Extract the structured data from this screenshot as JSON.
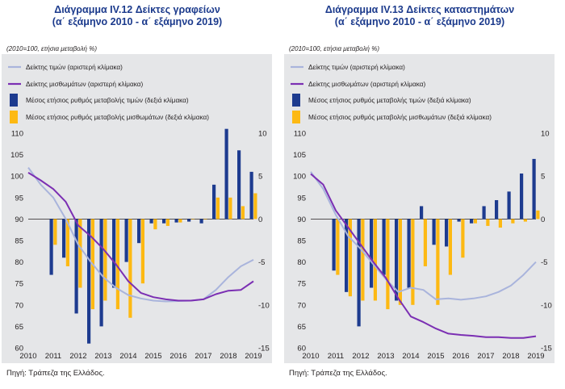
{
  "colors": {
    "price_line": "#a9b4dc",
    "wage_line": "#7b2fb3",
    "price_bar": "#1d3b8f",
    "wage_bar": "#fdb913",
    "title": "#1b3a8c",
    "panel_bg": "#e5e6e8"
  },
  "chart_data": [
    {
      "type": "bar+line",
      "title_line1": "Διάγραμμα IV.12 Δείκτες γραφείων",
      "title_line2": "(α΄ εξάμηνο 2010 - α΄ εξάμηνο 2019)",
      "note": "(2010=100, ετήσια μεταβολή %)",
      "source": "Πηγή: Τράπεζα της Ελλάδος.",
      "legend": [
        {
          "key": "price_line",
          "label": "Δείκτης τιμών (αριστερή κλίμακα)"
        },
        {
          "key": "wage_line",
          "label": "Δείκτης μισθωμάτων (αριστερή κλίμακα)"
        },
        {
          "key": "price_bar",
          "label": "Μέσος ετήσιος ρυθμός μεταβολής τιμών (δεξιά κλίμακα)"
        },
        {
          "key": "wage_bar",
          "label": "Μέσος ετήσιος ρυθμός μεταβολής μισθωμάτων (δεξιά κλίμακα)"
        }
      ],
      "x_labels": [
        "2010",
        "2011",
        "2012",
        "2013",
        "2014",
        "2015",
        "2016",
        "2017",
        "2018",
        "2019"
      ],
      "y_left": {
        "min": 60,
        "max": 110,
        "ticks": [
          60,
          65,
          70,
          75,
          80,
          85,
          90,
          95,
          100,
          105,
          110
        ]
      },
      "y_right": {
        "min": -15,
        "max": 10,
        "ticks": [
          -15,
          -10,
          -5,
          0,
          5,
          10
        ]
      },
      "periods": [
        2011,
        2011.5,
        2012,
        2012.5,
        2013,
        2013.5,
        2014,
        2014.5,
        2015,
        2015.5,
        2016,
        2016.5,
        2017,
        2017.5,
        2018,
        2018.5,
        2019
      ],
      "price_change": [
        -6.5,
        -4.5,
        -11,
        -14.5,
        -12.5,
        -8,
        -5,
        -2.8,
        -0.5,
        -0.5,
        -0.4,
        -0.3,
        -0.5,
        4,
        10.5,
        8,
        5.5
      ],
      "wage_change": [
        -3,
        -5.5,
        -8,
        -10.5,
        -9.5,
        -10.5,
        -11.5,
        -7.5,
        -1.2,
        -0.8,
        -0.4,
        0,
        0,
        2.5,
        2.5,
        1.5,
        3
      ],
      "price_index": {
        "x": [
          2010,
          2010.5,
          2011,
          2011.5,
          2012,
          2012.5,
          2013,
          2013.5,
          2014,
          2014.5,
          2015,
          2015.5,
          2016,
          2016.5,
          2017,
          2017.5,
          2018,
          2018.5,
          2019
        ],
        "y": [
          102,
          98,
          95,
          90,
          84,
          80,
          76.5,
          74,
          72.3,
          71.5,
          71,
          70.8,
          70.9,
          71,
          71.3,
          73.5,
          76.5,
          79,
          80.5
        ]
      },
      "wage_index": {
        "x": [
          2010,
          2010.5,
          2011,
          2011.5,
          2012,
          2012.5,
          2013,
          2013.5,
          2014,
          2014.5,
          2015,
          2015.5,
          2016,
          2016.5,
          2017,
          2017.5,
          2018,
          2018.5,
          2019
        ],
        "y": [
          100.8,
          99,
          97,
          94,
          88.5,
          86,
          83,
          79.5,
          75.5,
          72.8,
          71.8,
          71.3,
          71,
          71,
          71.3,
          72.5,
          73.3,
          73.5,
          75.5
        ]
      }
    },
    {
      "type": "bar+line",
      "title_line1": "Διάγραμμα IV.13 Δείκτες καταστημάτων",
      "title_line2": "(α΄ εξάμηνο 2010 - α΄ εξάμηνο 2019)",
      "note": "(2010=100, ετήσια μεταβολή %)",
      "source": "Πηγή: Τράπεζα της Ελλάδος.",
      "legend": [
        {
          "key": "price_line",
          "label": "Δείκτης τιμών (αριστερή κλίμακα)"
        },
        {
          "key": "wage_line",
          "label": "Δείκτης μισθωμάτων (αριστερή κλίμακα)"
        },
        {
          "key": "price_bar",
          "label": "Μέσος ετήσιος ρυθμός μεταβολής τιμών (δεξιά κλίμακα)"
        },
        {
          "key": "wage_bar",
          "label": "Μέσος ετήσιος ρυθμός μεταβολής μισθωμάτων (δεξιά κλίμακα)"
        }
      ],
      "x_labels": [
        "2010",
        "2011",
        "2012",
        "2013",
        "2014",
        "2015",
        "2016",
        "2017",
        "2018",
        "2019"
      ],
      "y_left": {
        "min": 60,
        "max": 110,
        "ticks": [
          60,
          65,
          70,
          75,
          80,
          85,
          90,
          95,
          100,
          105,
          110
        ]
      },
      "y_right": {
        "min": -15,
        "max": 10,
        "ticks": [
          -15,
          -10,
          -5,
          0,
          5,
          10
        ]
      },
      "periods": [
        2011,
        2011.5,
        2012,
        2012.5,
        2013,
        2013.5,
        2014,
        2014.5,
        2015,
        2015.5,
        2016,
        2016.5,
        2017,
        2017.5,
        2018,
        2018.5,
        2019
      ],
      "price_change": [
        -6,
        -8.5,
        -12.5,
        -8,
        -6.5,
        -9.5,
        -8,
        1.5,
        -3,
        -3.2,
        -0.3,
        -0.5,
        1.5,
        2.2,
        3.2,
        5.3,
        7
      ],
      "wage_change": [
        -6.5,
        -9,
        -9.5,
        -9.5,
        -10.5,
        -10,
        -10,
        -5.5,
        -10,
        -6.5,
        -4.5,
        -0.5,
        -0.8,
        -1,
        -0.5,
        -0.3,
        1
      ],
      "price_index": {
        "x": [
          2010,
          2010.5,
          2011,
          2011.5,
          2012,
          2012.5,
          2013,
          2013.5,
          2014,
          2014.5,
          2015,
          2015.5,
          2016,
          2016.5,
          2017,
          2017.5,
          2018,
          2018.5,
          2019
        ],
        "y": [
          101,
          97,
          91,
          86,
          83,
          79.5,
          76,
          73,
          74,
          73.5,
          71.3,
          71.5,
          71.2,
          71.5,
          72,
          73,
          74.5,
          77,
          80
        ]
      },
      "wage_index": {
        "x": [
          2010,
          2010.5,
          2011,
          2011.5,
          2012,
          2012.5,
          2013,
          2013.5,
          2014,
          2014.5,
          2015,
          2015.5,
          2016,
          2016.5,
          2017,
          2017.5,
          2018,
          2018.5,
          2019
        ],
        "y": [
          100.5,
          98,
          92,
          88,
          84,
          80,
          76.3,
          71.5,
          67.3,
          66,
          64.5,
          63.3,
          63,
          62.8,
          62.5,
          62.5,
          62.3,
          62.3,
          62.7
        ]
      }
    }
  ]
}
